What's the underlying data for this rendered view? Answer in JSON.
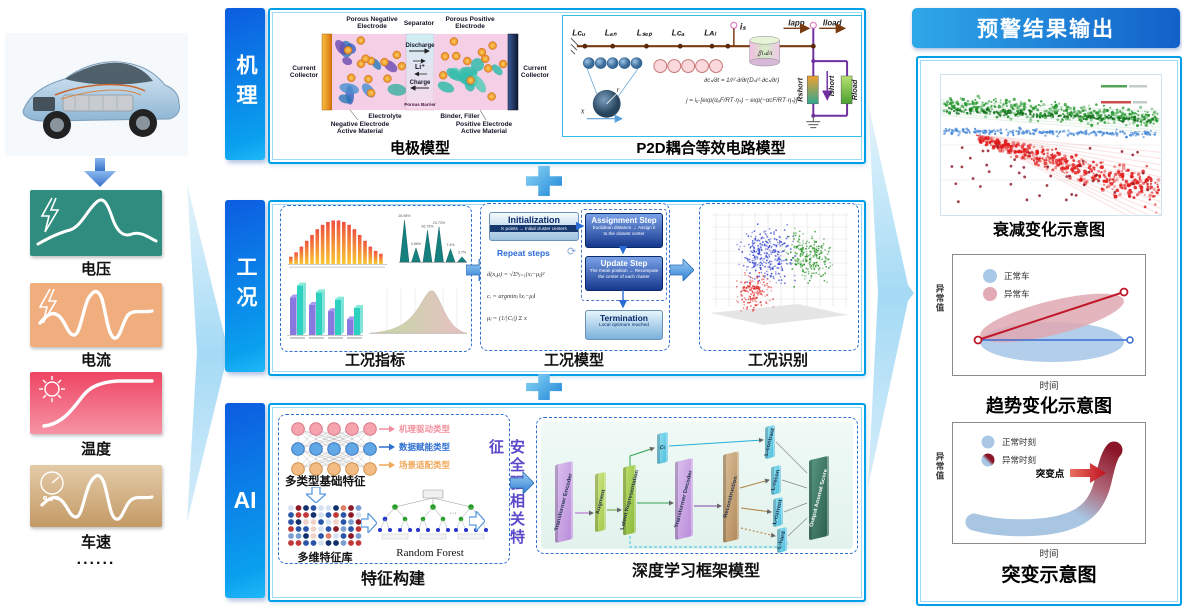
{
  "left": {
    "signals": [
      {
        "label": "电压"
      },
      {
        "label": "电流"
      },
      {
        "label": "温度"
      },
      {
        "label": "车速"
      }
    ],
    "more": "......"
  },
  "rows": {
    "mechanism": {
      "tag": "机理",
      "electrode": {
        "caption": "电极模型",
        "porous_negative": "Porous Negative",
        "porous_positive": "Porous Positive",
        "electrode_word": "Electrode",
        "separator": "Separator",
        "current_word": "Current",
        "collector_word": "Collector",
        "discharge": "Discharge",
        "li": "Li⁺",
        "charge": "Charge",
        "porous_barrier": "Porous Barrier",
        "electrolyte": "Electrolyte",
        "binder_filler": "Binder, Filler",
        "negative_electrode": "Negative Electrode",
        "positive_electrode": "Positive Electrode",
        "active_material": "Active Material"
      },
      "p2d": {
        "caption": "P2D耦合等效电路模型",
        "nodes": [
          "Lᴄᵤ",
          "Lₐₙ",
          "Lₛₑₚ",
          "Lᴄₐ",
          "Lᴀₗ"
        ],
        "i_s": "iₛ",
        "i_app": "Iapp",
        "i_load": "Iload",
        "integral": "∬iₛdA",
        "r_short": "Rshort",
        "i_short": "Ishort",
        "r_load": "Rload",
        "eq1": "∂cₛ/∂t = 1/r²·∂/∂r(Dₛr²·∂cₛ/∂r)",
        "eq2": "j = i₀·[exp(αₐF/RT·ηₛ) − exp(−αᴄF/RT·ηₛ)]",
        "r_label": "r",
        "x_label": "x"
      }
    },
    "condition": {
      "tag": "工况",
      "indicators": {
        "caption": "工况指标",
        "bell_bars": [
          2.5,
          4,
          6,
          8,
          10,
          12,
          13.5,
          14.5,
          15,
          15,
          14.5,
          13.5,
          12,
          10,
          8,
          6,
          4.5,
          3.5
        ],
        "peaks": [
          0.95,
          0.32,
          0.72,
          0.8,
          0.3,
          0.12
        ],
        "peak_labels": [
          "26.98%",
          "9.86%",
          "26.79%",
          "24.73%",
          "7.4%",
          "3.7%"
        ],
        "grouped_bars": [
          [
            0.72,
            0.95
          ],
          [
            0.58,
            0.82
          ],
          [
            0.46,
            0.68
          ],
          [
            0.3,
            0.52
          ]
        ]
      },
      "model": {
        "caption": "工况模型",
        "init_title": "Initialization",
        "init_sub": "K points → Initial cluster centers",
        "repeat": "Repeat steps",
        "assign_title": "Assignment Step",
        "assign_sub1": "Euclidean distance → Assign it",
        "assign_sub2": "to the closest center",
        "update_title": "Update Step",
        "update_sub1": "The mean position → Recompute",
        "update_sub2": "the center of each cluster",
        "term_title": "Termination",
        "term_sub": "Local optimum reached",
        "eq1": "d(x,μ) = √Σⁿⱼ₌₁(xⱼ−μⱼ)²",
        "eq2": "cᵢ = argminⱼ ‖xᵢ−μⱼ‖",
        "eq3": "μⱼ = (1/|Cⱼ|) Σ x"
      },
      "recognition": {
        "caption": "工况识别"
      }
    },
    "ai": {
      "tag": "AI",
      "feature": {
        "caption": "特征构建",
        "arrow_labels": [
          {
            "text": "机理驱动类型",
            "color": "#f2919e"
          },
          {
            "text": "数据赋能类型",
            "color": "#2e6fd0"
          },
          {
            "text": "场景适配类型",
            "color": "#f0a85a"
          }
        ],
        "basic": "多类型基础特征",
        "lib": "多维特征库",
        "forest": "Random Forest",
        "safety": "安全强相关特征"
      },
      "dl": {
        "caption": "深度学习框架模型",
        "blocks": [
          "Transformer Encoder",
          "Augment",
          "Latent Representation",
          "Cₜ",
          "Transformer Decoder",
          "Reconstruction",
          "L-contrast",
          "L-recon",
          "L-current",
          "L-hard",
          "Output Anomal Score"
        ]
      }
    }
  },
  "output": {
    "title": "预警结果输出",
    "decay": {
      "caption": "衰减变化示意图"
    },
    "trend": {
      "caption": "趋势变化示意图",
      "legend_normal": "正常车",
      "legend_abnormal": "异常车",
      "xlabel": "时间",
      "ylabel": "异常值"
    },
    "mutation": {
      "caption": "突变示意图",
      "legend_normal": "正常时刻",
      "legend_abnormal": "异常时刻",
      "xlabel": "时间",
      "ylabel": "异常值",
      "annotation": "突变点"
    }
  },
  "colors": {
    "accent_blue": "#00a0e8",
    "teal_card": "#2f8c7e",
    "orange_card": "#f0ad7e",
    "red_card": "#ee4563",
    "tan_card": "#cfa878"
  }
}
